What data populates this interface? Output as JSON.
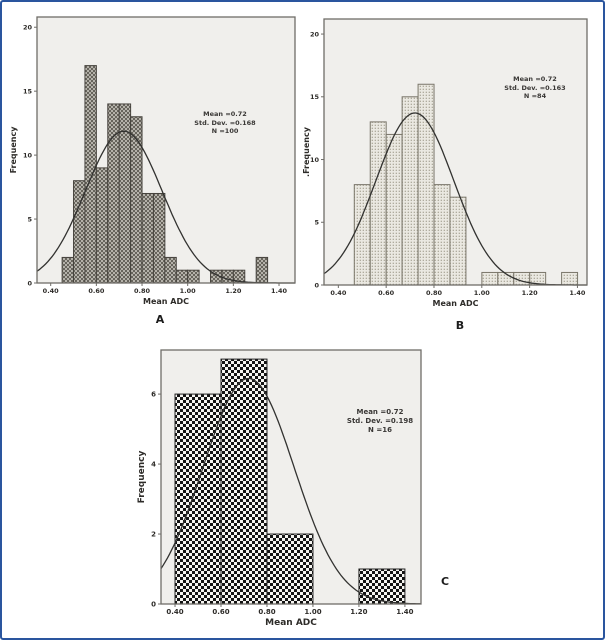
{
  "figure": {
    "border_color": "#2a559e",
    "background": "#ffffff",
    "plot_background": "#f0efec",
    "frame_color": "#6f6d68",
    "curve_color": "#323230"
  },
  "chart_data": [
    {
      "type": "histogram",
      "panel_label": "A",
      "xlabel": "Mean ADC",
      "ylabel": "Frequency",
      "x_ticks": [
        "0.40",
        "0.60",
        "0.80",
        "1.00",
        "1.20",
        "1.40"
      ],
      "x_tick_values": [
        0.4,
        0.6,
        0.8,
        1.0,
        1.2,
        1.4
      ],
      "y_ticks": [
        "0",
        "5",
        "10",
        "15",
        "20"
      ],
      "y_tick_values": [
        0,
        5,
        10,
        15,
        20
      ],
      "xlim": [
        0.34,
        1.47
      ],
      "ylim": [
        0,
        20.8
      ],
      "grid": false,
      "legend": "none",
      "bins": {
        "start": 0.45,
        "width": 0.05,
        "counts": [
          2,
          8,
          17,
          9,
          14,
          14,
          13,
          7,
          7,
          2,
          1,
          1,
          0,
          1,
          1,
          1,
          0,
          2
        ]
      },
      "normal_curve": {
        "mean": 0.72,
        "sd": 0.168,
        "n": 100
      },
      "annotation": {
        "lines": [
          "Mean =0.72",
          "Std. Dev. =0.168",
          "N =100"
        ]
      },
      "style": {
        "hatch": "crosshatch",
        "bar_stroke": "#46433d"
      }
    },
    {
      "type": "histogram",
      "panel_label": "B",
      "xlabel": "Mean ADC",
      "ylabel": ".Frequency",
      "x_ticks": [
        "0.40",
        "0.60",
        "0.80",
        "1.00",
        "1.20",
        "1.40"
      ],
      "x_tick_values": [
        0.4,
        0.6,
        0.8,
        1.0,
        1.2,
        1.4
      ],
      "y_ticks": [
        "0",
        "5",
        "10",
        "15",
        "20"
      ],
      "y_tick_values": [
        0,
        5,
        10,
        15,
        20
      ],
      "xlim": [
        0.34,
        1.44
      ],
      "ylim": [
        0,
        21.2
      ],
      "grid": false,
      "legend": "none",
      "bins": {
        "start": 0.4667,
        "width": 0.0667,
        "counts": [
          8,
          13,
          12,
          15,
          16,
          8,
          7,
          0,
          1,
          1,
          1,
          1,
          0,
          1
        ]
      },
      "normal_curve": {
        "mean": 0.72,
        "sd": 0.163,
        "n": 84
      },
      "annotation": {
        "lines": [
          "Mean =0.72",
          "Std. Dev. =0.163",
          "N =84"
        ]
      },
      "style": {
        "hatch": "dots",
        "bar_stroke": "#7a766a"
      }
    },
    {
      "type": "histogram",
      "panel_label": "C",
      "xlabel": "Mean ADC",
      "ylabel": "Frequency",
      "x_ticks": [
        "0.40",
        "0.60",
        "0.80",
        "1.00",
        "1.20",
        "1.40"
      ],
      "x_tick_values": [
        0.4,
        0.6,
        0.8,
        1.0,
        1.2,
        1.4
      ],
      "y_ticks": [
        "0",
        "2",
        "4",
        "6"
      ],
      "y_tick_values": [
        0,
        2,
        4,
        6
      ],
      "xlim": [
        0.339,
        1.47
      ],
      "ylim": [
        0,
        7.26
      ],
      "grid": false,
      "legend": "none",
      "bins": {
        "start": 0.4,
        "width": 0.2,
        "counts": [
          6,
          7,
          2,
          0,
          1
        ]
      },
      "normal_curve": {
        "mean": 0.72,
        "sd": 0.198,
        "n": 16
      },
      "annotation": {
        "lines": [
          "Mean =0.72",
          "Std. Dev. =0.198",
          "N =16"
        ]
      },
      "style": {
        "hatch": "checker",
        "bar_stroke": "#222222"
      }
    }
  ]
}
